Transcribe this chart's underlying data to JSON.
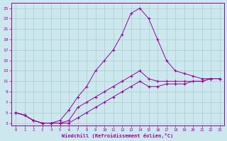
{
  "xlabel": "Windchill (Refroidissement éolien,°C)",
  "x": [
    0,
    1,
    2,
    3,
    4,
    5,
    6,
    7,
    8,
    9,
    10,
    11,
    12,
    13,
    14,
    15,
    16,
    17,
    18,
    19,
    20,
    21,
    22,
    23
  ],
  "line_peak": [
    5.0,
    4.5,
    3.5,
    3.0,
    3.0,
    3.5,
    5.5,
    8.0,
    10.0,
    13.0,
    15.0,
    17.0,
    20.0,
    24.0,
    25.0,
    23.0,
    19.0,
    15.0,
    13.0,
    12.5,
    12.0,
    11.5,
    11.5,
    11.5
  ],
  "line_mid": [
    5.0,
    4.5,
    3.5,
    3.0,
    3.0,
    3.0,
    3.5,
    6.0,
    7.0,
    8.0,
    9.0,
    10.0,
    11.0,
    12.0,
    13.0,
    11.5,
    11.0,
    11.0,
    11.0,
    11.0,
    11.0,
    11.0,
    11.5,
    11.5
  ],
  "line_low": [
    5.0,
    4.5,
    3.5,
    3.0,
    3.0,
    3.0,
    3.0,
    4.0,
    5.0,
    6.0,
    7.0,
    8.0,
    9.0,
    10.0,
    11.0,
    10.0,
    10.0,
    10.5,
    10.5,
    10.5,
    11.0,
    11.0,
    11.5,
    11.5
  ],
  "color": "#990099",
  "bg_color": "#cce8ee",
  "grid_color": "#aacccc",
  "ylim": [
    3,
    25
  ],
  "yticks": [
    3,
    5,
    7,
    9,
    11,
    13,
    15,
    17,
    19,
    21,
    23,
    25
  ],
  "xlim": [
    0,
    23
  ],
  "xticks": [
    0,
    1,
    2,
    3,
    4,
    5,
    6,
    7,
    8,
    9,
    10,
    11,
    12,
    13,
    14,
    15,
    16,
    17,
    18,
    19,
    20,
    21,
    22,
    23
  ]
}
